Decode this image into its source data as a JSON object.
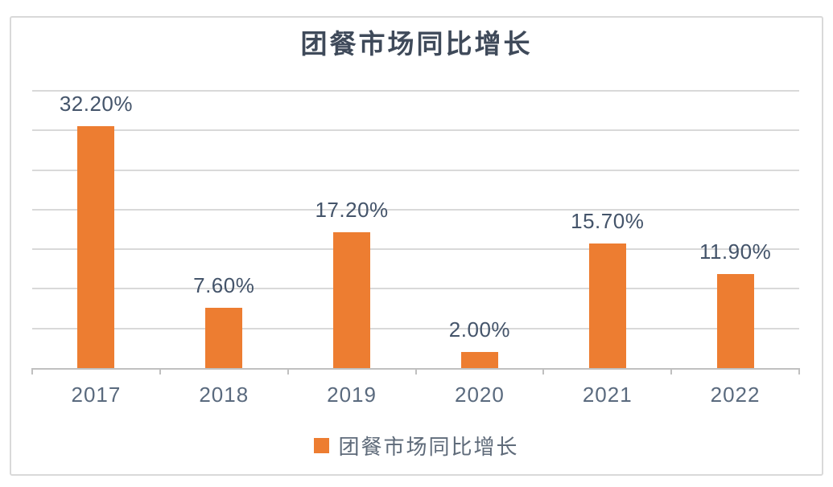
{
  "chart_data": {
    "type": "bar",
    "title": "团餐市场同比增长",
    "categories": [
      "2017",
      "2018",
      "2019",
      "2020",
      "2021",
      "2022"
    ],
    "values": [
      32.2,
      7.6,
      17.2,
      2.0,
      15.7,
      11.9
    ],
    "data_labels": [
      "32.20%",
      "7.60%",
      "17.20%",
      "2.00%",
      "15.70%",
      "11.90%"
    ],
    "xlabel": "",
    "ylabel": "",
    "ylim": [
      0,
      35
    ],
    "y_major_unit": 5,
    "grid": true,
    "legend": {
      "label": "团餐市场同比增长",
      "position": "bottom",
      "swatch_color": "#ED7D31"
    },
    "colors": {
      "bar": "#ED7D31",
      "gridline": "#D9D9D9",
      "axis_line": "#C0C0C0",
      "title_text": "#3F4A5A",
      "data_label_text": "#44546A",
      "axis_label_text": "#5A6A7E",
      "legend_text": "#5F6B7A",
      "frame_border": "#D9D9D9",
      "background": "#FFFFFF"
    }
  }
}
